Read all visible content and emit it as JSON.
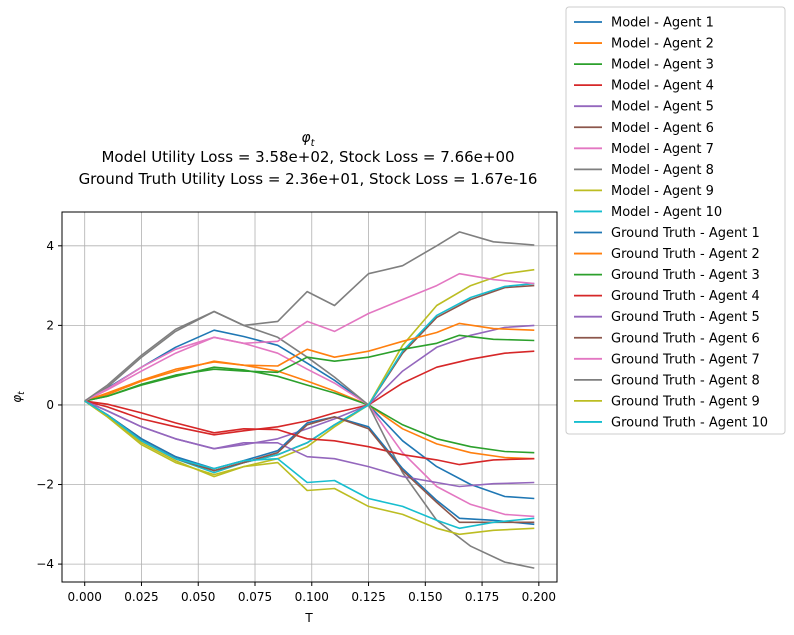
{
  "chart_data": {
    "type": "line",
    "title_symbol": "φ",
    "title_subscript": "t",
    "title_line2": "Model Utility Loss = 3.58e+02, Stock Loss = 7.66e+00",
    "title_line3": "Ground Truth Utility Loss = 2.36e+01, Stock Loss = 1.67e-16",
    "xlabel": "T",
    "ylabel_symbol": "φ",
    "ylabel_subscript": "t",
    "xlim": [
      -0.01,
      0.208
    ],
    "ylim": [
      -4.45,
      4.85
    ],
    "xticks": [
      0.0,
      0.025,
      0.05,
      0.075,
      0.1,
      0.125,
      0.15,
      0.175,
      0.2
    ],
    "xtick_labels": [
      "0.000",
      "0.025",
      "0.050",
      "0.075",
      "0.100",
      "0.125",
      "0.150",
      "0.175",
      "0.200"
    ],
    "yticks": [
      -4,
      -2,
      0,
      2,
      4
    ],
    "ytick_labels": [
      "−4",
      "−2",
      "0",
      "2",
      "4"
    ],
    "grid": true,
    "legend_position": "outside-right",
    "series": [
      {
        "name": "Model - Agent 1",
        "color": "#1f77b4",
        "x": [
          0,
          0.01,
          0.025,
          0.04,
          0.057,
          0.07,
          0.085,
          0.098,
          0.11,
          0.125,
          0.14,
          0.155,
          0.17,
          0.185,
          0.198
        ],
        "y": [
          0.1,
          0.42,
          0.95,
          1.45,
          1.88,
          1.72,
          1.5,
          1.05,
          0.62,
          0.0,
          -0.9,
          -1.55,
          -2.0,
          -2.3,
          -2.35
        ]
      },
      {
        "name": "Model - Agent 2",
        "color": "#ff7f0e",
        "x": [
          0,
          0.01,
          0.025,
          0.04,
          0.057,
          0.07,
          0.085,
          0.098,
          0.11,
          0.125,
          0.14,
          0.155,
          0.17,
          0.185,
          0.198
        ],
        "y": [
          0.1,
          0.26,
          0.6,
          0.85,
          1.1,
          1.0,
          0.85,
          0.6,
          0.35,
          0.0,
          -0.6,
          -0.98,
          -1.2,
          -1.32,
          -1.35
        ]
      },
      {
        "name": "Model - Agent 3",
        "color": "#2ca02c",
        "x": [
          0,
          0.01,
          0.025,
          0.04,
          0.057,
          0.07,
          0.085,
          0.098,
          0.11,
          0.125,
          0.14,
          0.155,
          0.17,
          0.185,
          0.198
        ],
        "y": [
          0.1,
          0.22,
          0.5,
          0.72,
          0.95,
          0.88,
          0.72,
          0.5,
          0.3,
          0.0,
          -0.5,
          -0.85,
          -1.05,
          -1.17,
          -1.2
        ]
      },
      {
        "name": "Model - Agent 4",
        "color": "#d62728",
        "x": [
          0,
          0.01,
          0.025,
          0.04,
          0.057,
          0.07,
          0.085,
          0.098,
          0.11,
          0.125,
          0.14,
          0.155,
          0.17,
          0.185,
          0.198
        ],
        "y": [
          0.1,
          -0.05,
          -0.35,
          -0.55,
          -0.75,
          -0.65,
          -0.55,
          -0.4,
          -0.2,
          0.0,
          0.55,
          0.95,
          1.15,
          1.3,
          1.35
        ]
      },
      {
        "name": "Model - Agent 5",
        "color": "#9467bd",
        "x": [
          0,
          0.01,
          0.025,
          0.04,
          0.057,
          0.07,
          0.085,
          0.098,
          0.11,
          0.125,
          0.14,
          0.155,
          0.17,
          0.185,
          0.198
        ],
        "y": [
          0.1,
          -0.15,
          -0.55,
          -0.85,
          -1.1,
          -1.0,
          -0.85,
          -0.6,
          -0.35,
          0.0,
          0.85,
          1.45,
          1.75,
          1.95,
          2.0
        ]
      },
      {
        "name": "Model - Agent 6",
        "color": "#8c564b",
        "x": [
          0,
          0.01,
          0.025,
          0.04,
          0.057,
          0.07,
          0.085,
          0.098,
          0.11,
          0.125,
          0.14,
          0.155,
          0.17,
          0.185,
          0.198
        ],
        "y": [
          0.1,
          -0.25,
          -0.85,
          -1.3,
          -1.65,
          -1.45,
          -1.25,
          -0.95,
          -0.5,
          0.0,
          1.3,
          2.2,
          2.65,
          2.95,
          3.0
        ]
      },
      {
        "name": "Model - Agent 7",
        "color": "#e377c2",
        "x": [
          0,
          0.01,
          0.025,
          0.04,
          0.057,
          0.07,
          0.085,
          0.098,
          0.11,
          0.125,
          0.14,
          0.155,
          0.17,
          0.185,
          0.198
        ],
        "y": [
          0.1,
          0.38,
          0.85,
          1.3,
          1.7,
          1.55,
          1.3,
          0.9,
          0.55,
          0.0,
          -1.2,
          -2.05,
          -2.5,
          -2.75,
          -2.8
        ]
      },
      {
        "name": "Model - Agent 8",
        "color": "#7f7f7f",
        "x": [
          0,
          0.01,
          0.025,
          0.04,
          0.057,
          0.07,
          0.085,
          0.098,
          0.11,
          0.125,
          0.14,
          0.155,
          0.17,
          0.185,
          0.198
        ],
        "y": [
          0.1,
          0.45,
          1.2,
          1.85,
          2.35,
          2.0,
          1.7,
          1.2,
          0.7,
          0.0,
          -1.7,
          -2.9,
          -3.55,
          -3.95,
          -4.1
        ]
      },
      {
        "name": "Model - Agent 9",
        "color": "#bcbd22",
        "x": [
          0,
          0.01,
          0.025,
          0.04,
          0.057,
          0.07,
          0.085,
          0.098,
          0.11,
          0.125,
          0.14,
          0.155,
          0.17,
          0.185,
          0.198
        ],
        "y": [
          0.1,
          -0.3,
          -0.95,
          -1.4,
          -1.8,
          -1.55,
          -1.35,
          -1.05,
          -0.55,
          0.0,
          1.5,
          2.5,
          3.0,
          3.3,
          3.4
        ]
      },
      {
        "name": "Model - Agent 10",
        "color": "#17becf",
        "x": [
          0,
          0.01,
          0.025,
          0.04,
          0.057,
          0.07,
          0.085,
          0.098,
          0.11,
          0.125,
          0.14,
          0.155,
          0.17,
          0.185,
          0.198
        ],
        "y": [
          0.1,
          -0.25,
          -0.9,
          -1.35,
          -1.7,
          -1.45,
          -1.25,
          -0.95,
          -0.5,
          0.0,
          1.35,
          2.25,
          2.7,
          2.98,
          3.05
        ]
      },
      {
        "name": "Ground Truth - Agent 1",
        "color": "#1f77b4",
        "x": [
          0,
          0.01,
          0.025,
          0.04,
          0.057,
          0.07,
          0.085,
          0.098,
          0.11,
          0.125,
          0.14,
          0.155,
          0.165,
          0.18,
          0.198
        ],
        "y": [
          0.1,
          -0.25,
          -0.85,
          -1.3,
          -1.6,
          -1.4,
          -1.15,
          -0.45,
          -0.3,
          -0.55,
          -1.6,
          -2.4,
          -2.85,
          -2.9,
          -3.0
        ]
      },
      {
        "name": "Ground Truth - Agent 2",
        "color": "#ff7f0e",
        "x": [
          0,
          0.01,
          0.025,
          0.04,
          0.057,
          0.07,
          0.085,
          0.098,
          0.11,
          0.125,
          0.14,
          0.155,
          0.165,
          0.18,
          0.198
        ],
        "y": [
          0.1,
          0.3,
          0.62,
          0.9,
          1.08,
          1.0,
          0.98,
          1.4,
          1.2,
          1.35,
          1.6,
          1.82,
          2.05,
          1.92,
          1.88
        ]
      },
      {
        "name": "Ground Truth - Agent 3",
        "color": "#2ca02c",
        "x": [
          0,
          0.01,
          0.025,
          0.04,
          0.057,
          0.07,
          0.085,
          0.098,
          0.11,
          0.125,
          0.14,
          0.155,
          0.165,
          0.18,
          0.198
        ],
        "y": [
          0.1,
          0.22,
          0.52,
          0.75,
          0.9,
          0.85,
          0.82,
          1.2,
          1.1,
          1.2,
          1.4,
          1.55,
          1.75,
          1.65,
          1.62
        ]
      },
      {
        "name": "Ground Truth - Agent 4",
        "color": "#d62728",
        "x": [
          0,
          0.01,
          0.025,
          0.04,
          0.057,
          0.07,
          0.085,
          0.098,
          0.11,
          0.125,
          0.14,
          0.155,
          0.165,
          0.18,
          0.198
        ],
        "y": [
          0.1,
          0.02,
          -0.2,
          -0.45,
          -0.7,
          -0.6,
          -0.62,
          -0.85,
          -0.9,
          -1.05,
          -1.25,
          -1.38,
          -1.5,
          -1.38,
          -1.35
        ]
      },
      {
        "name": "Ground Truth - Agent 5",
        "color": "#9467bd",
        "x": [
          0,
          0.01,
          0.025,
          0.04,
          0.057,
          0.07,
          0.085,
          0.098,
          0.11,
          0.125,
          0.14,
          0.155,
          0.165,
          0.18,
          0.198
        ],
        "y": [
          0.1,
          -0.15,
          -0.55,
          -0.85,
          -1.1,
          -0.95,
          -0.95,
          -1.3,
          -1.35,
          -1.55,
          -1.8,
          -1.95,
          -2.05,
          -1.98,
          -1.95
        ]
      },
      {
        "name": "Ground Truth - Agent 6",
        "color": "#8c564b",
        "x": [
          0,
          0.01,
          0.025,
          0.04,
          0.057,
          0.07,
          0.085,
          0.098,
          0.11,
          0.125,
          0.14,
          0.155,
          0.165,
          0.18,
          0.198
        ],
        "y": [
          0.1,
          -0.25,
          -0.9,
          -1.35,
          -1.65,
          -1.45,
          -1.2,
          -0.5,
          -0.3,
          -0.6,
          -1.65,
          -2.45,
          -2.95,
          -2.95,
          -2.95
        ]
      },
      {
        "name": "Ground Truth - Agent 7",
        "color": "#e377c2",
        "x": [
          0,
          0.01,
          0.025,
          0.04,
          0.057,
          0.07,
          0.085,
          0.098,
          0.11,
          0.125,
          0.14,
          0.155,
          0.165,
          0.18,
          0.198
        ],
        "y": [
          0.1,
          0.4,
          0.95,
          1.4,
          1.7,
          1.55,
          1.6,
          2.1,
          1.85,
          2.3,
          2.65,
          3.0,
          3.3,
          3.15,
          3.05
        ]
      },
      {
        "name": "Ground Truth - Agent 8",
        "color": "#7f7f7f",
        "x": [
          0,
          0.01,
          0.025,
          0.04,
          0.057,
          0.07,
          0.085,
          0.098,
          0.11,
          0.125,
          0.14,
          0.155,
          0.165,
          0.18,
          0.198
        ],
        "y": [
          0.1,
          0.5,
          1.25,
          1.9,
          2.35,
          2.0,
          2.1,
          2.85,
          2.5,
          3.3,
          3.5,
          4.0,
          4.35,
          4.1,
          4.02
        ]
      },
      {
        "name": "Ground Truth - Agent 9",
        "color": "#bcbd22",
        "x": [
          0,
          0.01,
          0.025,
          0.04,
          0.057,
          0.07,
          0.085,
          0.098,
          0.11,
          0.125,
          0.14,
          0.155,
          0.165,
          0.18,
          0.198
        ],
        "y": [
          0.1,
          -0.3,
          -1.0,
          -1.45,
          -1.75,
          -1.55,
          -1.45,
          -2.15,
          -2.1,
          -2.55,
          -2.75,
          -3.1,
          -3.25,
          -3.15,
          -3.1
        ]
      },
      {
        "name": "Ground Truth - Agent 10",
        "color": "#17becf",
        "x": [
          0,
          0.01,
          0.025,
          0.04,
          0.057,
          0.07,
          0.085,
          0.098,
          0.11,
          0.125,
          0.14,
          0.155,
          0.165,
          0.18,
          0.198
        ],
        "y": [
          0.1,
          -0.25,
          -0.9,
          -1.35,
          -1.6,
          -1.4,
          -1.35,
          -1.95,
          -1.9,
          -2.35,
          -2.55,
          -2.9,
          -3.1,
          -2.95,
          -2.85
        ]
      }
    ]
  }
}
